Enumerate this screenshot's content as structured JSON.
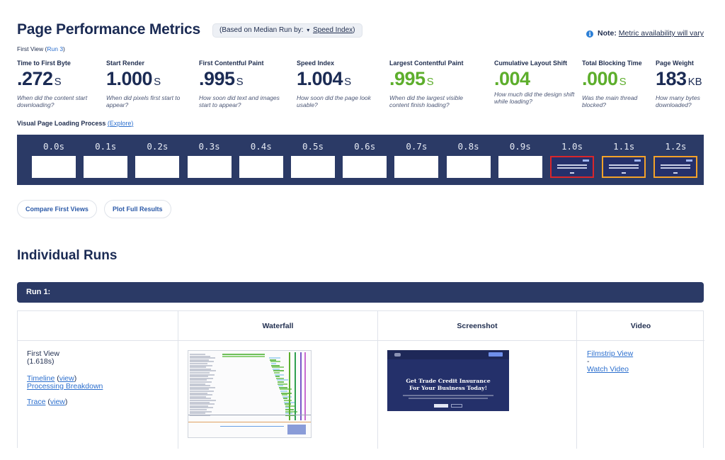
{
  "header": {
    "title": "Page Performance Metrics",
    "median_prefix": "(Based on Median Run by:",
    "median_arrow": "▾",
    "median_metric": "Speed Index",
    "median_suffix": ")",
    "note_icon": "info-icon",
    "note_label": "Note:",
    "note_text": "Metric availability will vary"
  },
  "first_view": {
    "prefix": "First View (",
    "run_link": "Run 3",
    "suffix": ")"
  },
  "metrics": [
    {
      "label": "Time to First Byte",
      "value": ".272",
      "unit": "S",
      "desc": "When did the content start downloading?",
      "status": "neutral"
    },
    {
      "label": "Start Render",
      "value": "1.000",
      "unit": "S",
      "desc": "When did pixels first start to appear?",
      "status": "neutral"
    },
    {
      "label": "First Contentful Paint",
      "value": ".995",
      "unit": "S",
      "desc": "How soon did text and images start to appear?",
      "status": "neutral"
    },
    {
      "label": "Speed Index",
      "value": "1.004",
      "unit": "S",
      "desc": "How soon did the page look usable?",
      "status": "neutral"
    },
    {
      "label": "Largest Contentful Paint",
      "value": ".995",
      "unit": "S",
      "desc": "When did the largest visible content finish loading?",
      "status": "good"
    },
    {
      "label": "Cumulative Layout Shift",
      "value": ".004",
      "unit": "",
      "desc": "How much did the design shift while loading?",
      "status": "good"
    },
    {
      "label": "Total Blocking Time",
      "value": ".000",
      "unit": "S",
      "desc": "Was the main thread blocked?",
      "status": "good"
    },
    {
      "label": "Page Weight",
      "value": "183",
      "unit": "KB",
      "desc": "How many bytes downloaded?",
      "status": "neutral"
    }
  ],
  "visual_progress": {
    "label": "Visual Page Loading Process",
    "link_open": "(",
    "link": "Explore",
    "link_close": ")",
    "frames": [
      {
        "time": "0.0s",
        "state": "blank"
      },
      {
        "time": "0.1s",
        "state": "blank"
      },
      {
        "time": "0.2s",
        "state": "blank"
      },
      {
        "time": "0.3s",
        "state": "blank"
      },
      {
        "time": "0.4s",
        "state": "blank"
      },
      {
        "time": "0.5s",
        "state": "blank"
      },
      {
        "time": "0.6s",
        "state": "blank"
      },
      {
        "time": "0.7s",
        "state": "blank"
      },
      {
        "time": "0.8s",
        "state": "blank"
      },
      {
        "time": "0.9s",
        "state": "blank"
      },
      {
        "time": "1.0s",
        "state": "changed-lcp"
      },
      {
        "time": "1.1s",
        "state": "changed"
      },
      {
        "time": "1.2s",
        "state": "changed"
      }
    ]
  },
  "actions": {
    "compare": "Compare First Views",
    "plot": "Plot Full Results"
  },
  "runs": {
    "section_title": "Individual Runs",
    "run_label": "Run 1:",
    "columns": [
      "",
      "Waterfall",
      "Screenshot",
      "Video"
    ],
    "first_view_label": "First View",
    "first_view_time": "(1.618s)",
    "timeline": "Timeline",
    "view": "view",
    "processing": "Processing Breakdown",
    "trace": "Trace",
    "paren_open": " (",
    "paren_close": ")",
    "filmstrip": "Filmstrip View",
    "dash": "-",
    "watch": "Watch Video",
    "screenshot_headline_1": "Get Trade Credit Insurance",
    "screenshot_headline_2": "For Your Business Today!"
  },
  "colors": {
    "navy": "#2b3a66",
    "good": "#5dae2c",
    "link": "#2c6fce",
    "lcp_border": "#d9262b",
    "changed_border": "#f4a229"
  }
}
